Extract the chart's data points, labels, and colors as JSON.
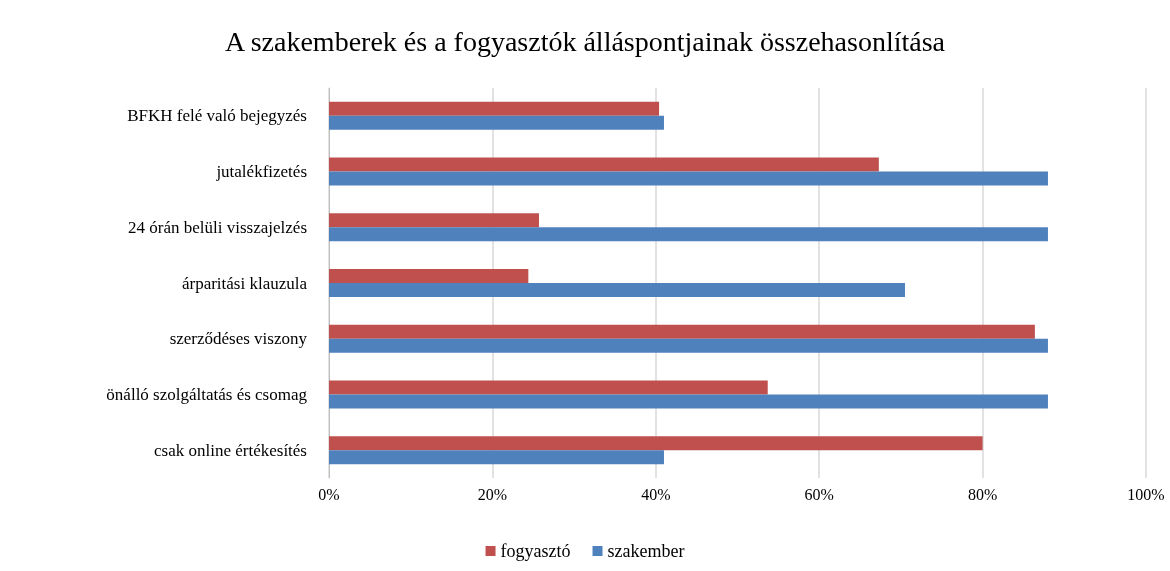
{
  "chart_data": {
    "type": "bar",
    "orientation": "horizontal",
    "title": "A szakemberek és a fogyasztók álláspontjainak összehasonlítása",
    "categories": [
      "BFKH felé való bejegyzés",
      "jutalékfizetés",
      "24 órán belüli visszajelzés",
      "árparitási klauzula",
      "szerződéses viszony",
      "önálló szolgáltatás és csomag",
      "csak online értékesítés"
    ],
    "series": [
      {
        "name": "fogyasztó",
        "color": "#c0504d",
        "values": [
          40.4,
          67.3,
          25.7,
          24.4,
          86.4,
          53.7,
          80
        ]
      },
      {
        "name": "szakember",
        "color": "#4f81bd",
        "values": [
          41,
          88,
          88,
          70.5,
          88,
          88,
          41
        ]
      }
    ],
    "xlim": [
      0,
      100
    ],
    "xticks": [
      {
        "value": 0,
        "label": "0%"
      },
      {
        "value": 20,
        "label": "20%"
      },
      {
        "value": 40,
        "label": "40%"
      },
      {
        "value": 60,
        "label": "60%"
      },
      {
        "value": 80,
        "label": "80%"
      },
      {
        "value": 100,
        "label": "100%"
      }
    ],
    "grid": "x",
    "legend": "bottom"
  }
}
